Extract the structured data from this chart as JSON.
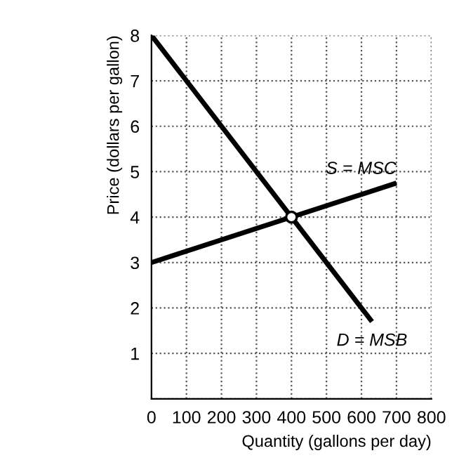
{
  "chart_data": {
    "type": "line",
    "xlabel": "Quantity (gallons per day)",
    "ylabel": "Price (dollars per gallon)",
    "xlim": [
      0,
      800
    ],
    "ylim": [
      0,
      8
    ],
    "xticks": [
      0,
      100,
      200,
      300,
      400,
      500,
      600,
      700,
      800
    ],
    "yticks": [
      {
        "value": 0,
        "label": null
      },
      1,
      2,
      3,
      4,
      5,
      6,
      7,
      8
    ],
    "grid": true,
    "line_style": "solid",
    "series": [
      {
        "name": "S = MSC",
        "color": "#000000",
        "x": [
          0,
          700
        ],
        "values": [
          3,
          4.75
        ]
      },
      {
        "name": "D = MSB",
        "color": "#000000",
        "x": [
          0,
          630
        ],
        "values": [
          8,
          1.7
        ]
      },
      {
        "type": "scatter",
        "marker": "circle",
        "color": "#000000",
        "x": [
          400
        ],
        "values": [
          4
        ]
      }
    ]
  }
}
